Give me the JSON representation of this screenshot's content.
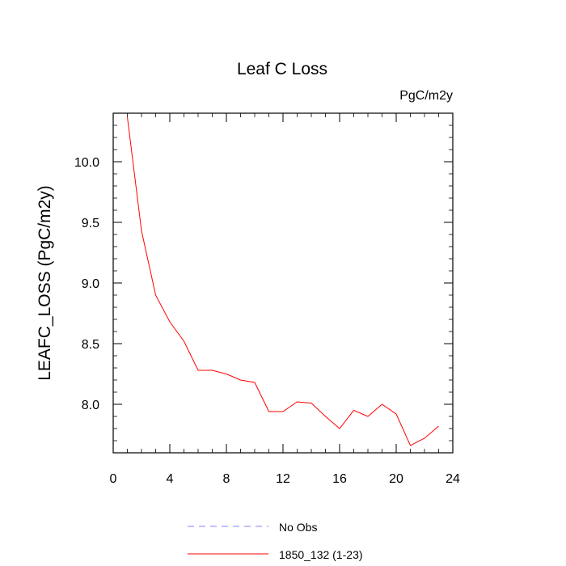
{
  "chart_data": {
    "type": "line",
    "title": "Leaf C Loss",
    "units": "PgC/m2y",
    "ylabel": "LEAFC_LOSS  (PgC/m2y)",
    "xlabel": "",
    "xlim": [
      0,
      24
    ],
    "ylim": [
      7.6,
      10.4
    ],
    "x_ticks": [
      0,
      4,
      8,
      12,
      16,
      20,
      24
    ],
    "y_ticks": [
      8.0,
      8.5,
      9.0,
      9.5,
      10.0
    ],
    "x_tick_labels": [
      "0",
      "4",
      "8",
      "12",
      "16",
      "20",
      "24"
    ],
    "y_tick_labels": [
      "8.0",
      "8.5",
      "9.0",
      "9.5",
      "10.0"
    ],
    "series": [
      {
        "name": "1850_132 (1-23)",
        "color": "#ff0000",
        "style": "solid",
        "x": [
          1,
          2,
          3,
          4,
          5,
          6,
          7,
          8,
          9,
          10,
          11,
          12,
          13,
          14,
          15,
          16,
          17,
          18,
          19,
          20,
          21,
          22,
          23
        ],
        "y": [
          10.37,
          9.43,
          8.9,
          8.68,
          8.52,
          8.28,
          8.28,
          8.25,
          8.2,
          8.18,
          7.94,
          7.94,
          8.02,
          8.01,
          7.9,
          7.8,
          7.95,
          7.9,
          8.0,
          7.92,
          7.66,
          7.72,
          7.82
        ]
      }
    ],
    "legend": {
      "placement": "bottom",
      "entries": [
        {
          "label": "No Obs",
          "color": "#8080ff",
          "style": "dashed"
        },
        {
          "label": "1850_132 (1-23)",
          "color": "#ff0000",
          "style": "solid"
        }
      ]
    },
    "grid": false
  }
}
